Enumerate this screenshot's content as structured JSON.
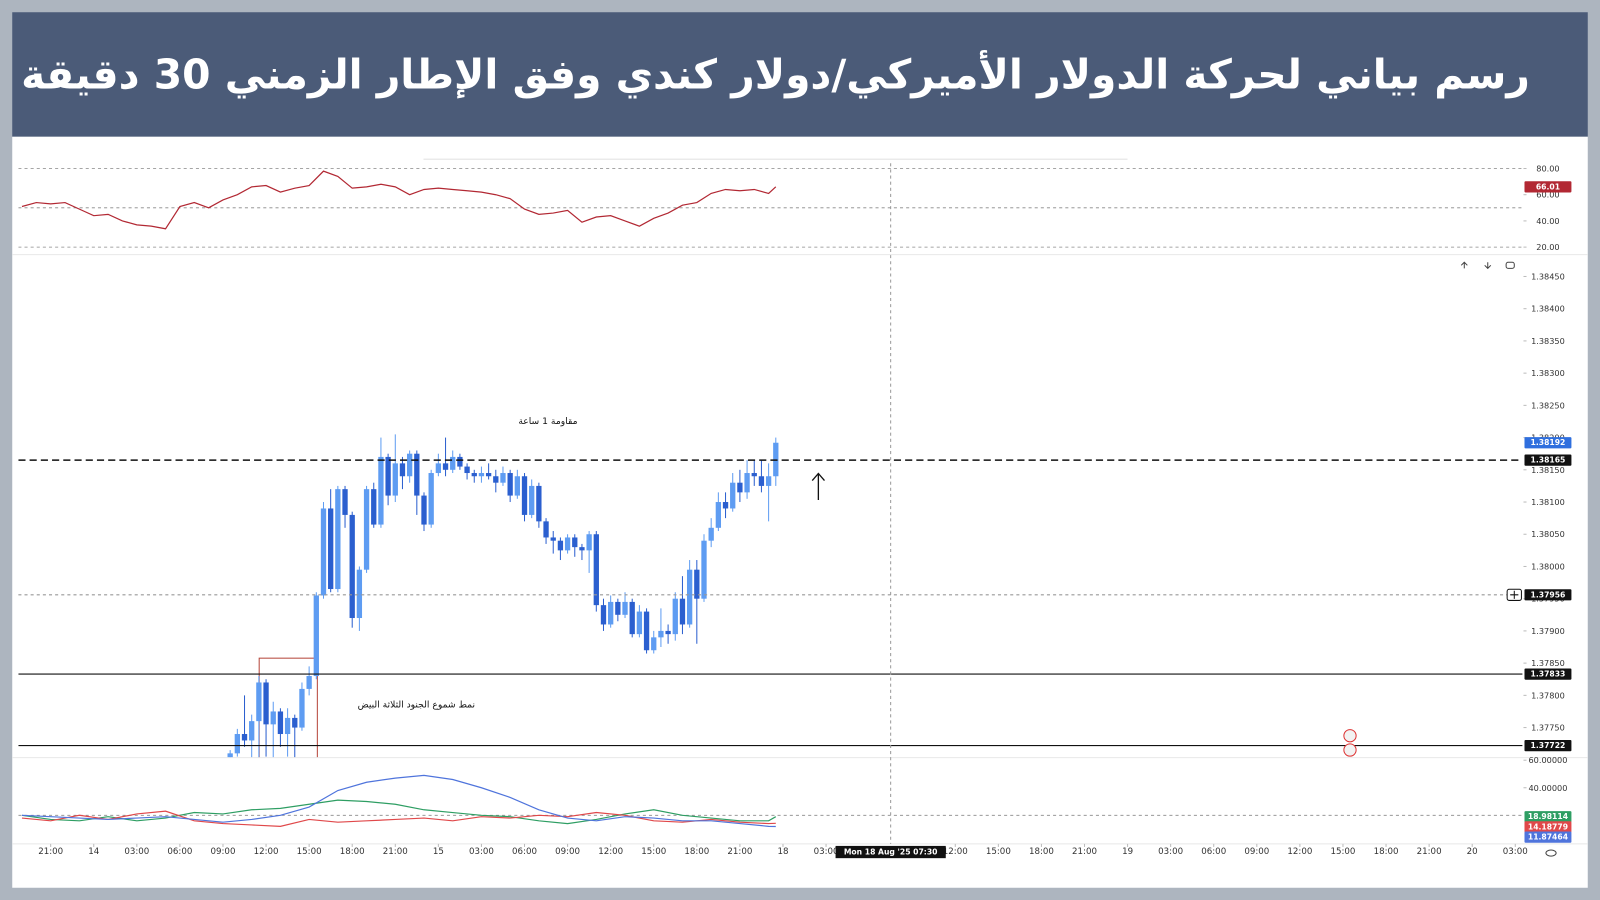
{
  "header": {
    "title": "رسم بياني لحركة الدولار الأميركي/دولار كندي وفق الإطار الزمني 30 دقيقة"
  },
  "chart_data": [
    {
      "type": "line",
      "x": [
        -5,
        -4,
        -3,
        -2,
        -1,
        0,
        1,
        2,
        3,
        4,
        5,
        6,
        7,
        8,
        9,
        10,
        11,
        12,
        13,
        14,
        15,
        16,
        17,
        18,
        19,
        20,
        21,
        22,
        23,
        24,
        25,
        26,
        27,
        28,
        29,
        30,
        31,
        32,
        33,
        34,
        35,
        36,
        37,
        38,
        39,
        40,
        41,
        42,
        43,
        44,
        45,
        46,
        47,
        47.5
      ],
      "series": [
        {
          "color": "#b22833",
          "values": [
            51,
            54,
            53,
            54,
            49,
            44,
            45,
            40,
            37,
            36,
            34,
            51,
            54,
            50,
            56,
            60,
            66,
            67,
            62,
            65,
            67,
            78,
            74,
            65,
            66,
            68,
            66,
            60,
            64,
            65,
            64,
            63,
            62,
            60,
            57,
            49,
            45,
            46,
            48,
            39,
            43,
            44,
            40,
            36,
            42,
            46,
            52,
            54,
            61,
            64,
            63,
            64,
            61,
            66.01
          ]
        }
      ],
      "ylim": [
        15,
        90
      ],
      "yticks": [
        {
          "value": 20,
          "label": "20.00"
        },
        {
          "value": 40,
          "label": "40.00"
        },
        {
          "value": 60,
          "label": "60.00"
        },
        {
          "value": 80,
          "label": "80.00"
        }
      ],
      "bands": [
        80,
        50,
        20
      ]
    },
    {
      "type": "candlestick",
      "x": [
        9.5,
        10,
        10.5,
        11,
        11.5,
        12,
        12.5,
        13,
        13.5,
        14,
        14.5,
        15,
        15.5,
        16,
        16.5,
        17,
        17.5,
        18,
        18.5,
        19,
        19.5,
        20,
        20.5,
        21,
        21.5,
        22,
        22.5,
        23,
        23.5,
        24,
        24.5,
        25,
        25.5,
        26,
        26.5,
        27,
        27.5,
        28,
        28.5,
        29,
        29.5,
        30,
        30.5,
        31,
        31.5,
        32,
        32.5,
        33,
        33.5,
        34,
        34.5,
        35,
        35.5,
        36,
        36.5,
        37,
        37.5,
        38,
        38.5,
        39,
        39.5,
        40,
        40.5,
        41,
        41.5,
        42,
        42.5,
        43,
        43.5,
        44,
        44.5,
        45,
        45.5,
        46,
        46.5,
        47,
        47.5
      ],
      "open": [
        1.377,
        1.3771,
        1.3774,
        1.3773,
        1.3776,
        1.3782,
        1.37755,
        1.37775,
        1.3774,
        1.37765,
        1.3775,
        1.3781,
        1.3783,
        1.37955,
        1.3809,
        1.37965,
        1.3812,
        1.3808,
        1.3792,
        1.37995,
        1.3812,
        1.38065,
        1.3817,
        1.3811,
        1.3816,
        1.3814,
        1.38175,
        1.3811,
        1.38065,
        1.38145,
        1.3816,
        1.3815,
        1.3817,
        1.38155,
        1.38145,
        1.3814,
        1.38145,
        1.3814,
        1.3813,
        1.38145,
        1.3811,
        1.3814,
        1.3808,
        1.38125,
        1.3807,
        1.38045,
        1.3804,
        1.38025,
        1.38045,
        1.3803,
        1.38025,
        1.3805,
        1.3794,
        1.3791,
        1.37945,
        1.37925,
        1.37945,
        1.37895,
        1.3793,
        1.3787,
        1.3789,
        1.379,
        1.37895,
        1.3795,
        1.3791,
        1.37995,
        1.3795,
        1.3804,
        1.3806,
        1.381,
        1.3809,
        1.3813,
        1.38115,
        1.38145,
        1.3814,
        1.38125,
        1.3814
      ],
      "high": [
        1.37715,
        1.37748,
        1.378,
        1.3777,
        1.3783,
        1.37825,
        1.3779,
        1.3778,
        1.3778,
        1.3777,
        1.3782,
        1.37845,
        1.3796,
        1.381,
        1.3812,
        1.38125,
        1.38125,
        1.38085,
        1.38,
        1.38125,
        1.3813,
        1.382,
        1.38175,
        1.38205,
        1.3817,
        1.3818,
        1.3818,
        1.38115,
        1.3815,
        1.38175,
        1.382,
        1.3818,
        1.38175,
        1.3816,
        1.3815,
        1.38155,
        1.3816,
        1.3815,
        1.38155,
        1.3815,
        1.3815,
        1.38145,
        1.38135,
        1.3813,
        1.38075,
        1.38055,
        1.38045,
        1.3805,
        1.3805,
        1.38035,
        1.38055,
        1.38055,
        1.3795,
        1.37955,
        1.3795,
        1.3796,
        1.3795,
        1.3794,
        1.37935,
        1.379,
        1.37935,
        1.3791,
        1.3796,
        1.37985,
        1.3801,
        1.3801,
        1.3805,
        1.38075,
        1.38115,
        1.38115,
        1.38145,
        1.3815,
        1.38165,
        1.38165,
        1.38165,
        1.3816,
        1.382
      ],
      "low": [
        1.37695,
        1.37705,
        1.3772,
        1.377,
        1.377,
        1.37705,
        1.377,
        1.3772,
        1.37705,
        1.377,
        1.37745,
        1.378,
        1.37825,
        1.3795,
        1.3796,
        1.3796,
        1.3806,
        1.37905,
        1.379,
        1.3799,
        1.3806,
        1.3806,
        1.38095,
        1.381,
        1.3812,
        1.3813,
        1.3808,
        1.38055,
        1.3806,
        1.3814,
        1.3814,
        1.38145,
        1.3815,
        1.38135,
        1.3813,
        1.3813,
        1.38135,
        1.38115,
        1.38125,
        1.381,
        1.38105,
        1.3807,
        1.38075,
        1.3806,
        1.38035,
        1.3802,
        1.3801,
        1.3802,
        1.38015,
        1.3801,
        1.3799,
        1.3793,
        1.379,
        1.37905,
        1.37915,
        1.3792,
        1.3789,
        1.3789,
        1.37865,
        1.37865,
        1.37875,
        1.3788,
        1.37885,
        1.37895,
        1.37905,
        1.3788,
        1.37945,
        1.3803,
        1.38055,
        1.38075,
        1.38085,
        1.381,
        1.38105,
        1.38125,
        1.38115,
        1.3807,
        1.38125
      ],
      "close": [
        1.3771,
        1.3774,
        1.3773,
        1.3776,
        1.3782,
        1.37755,
        1.37775,
        1.3774,
        1.37765,
        1.3775,
        1.3781,
        1.3783,
        1.37955,
        1.3809,
        1.37965,
        1.3812,
        1.3808,
        1.3792,
        1.37995,
        1.3812,
        1.38065,
        1.3817,
        1.3811,
        1.3816,
        1.3814,
        1.38175,
        1.3811,
        1.38065,
        1.38145,
        1.3816,
        1.3815,
        1.3817,
        1.38155,
        1.38145,
        1.3814,
        1.38145,
        1.3814,
        1.3813,
        1.38145,
        1.3811,
        1.3814,
        1.3808,
        1.38125,
        1.3807,
        1.38045,
        1.3804,
        1.38025,
        1.38045,
        1.3803,
        1.38025,
        1.3805,
        1.3794,
        1.3791,
        1.37945,
        1.37925,
        1.37945,
        1.37895,
        1.3793,
        1.3787,
        1.3789,
        1.379,
        1.37895,
        1.3795,
        1.3791,
        1.37995,
        1.3795,
        1.3804,
        1.3806,
        1.381,
        1.3809,
        1.3813,
        1.38115,
        1.38145,
        1.3814,
        1.38125,
        1.3814,
        1.38192
      ],
      "up_color": "#5e9cf2",
      "down_color": "#2b5fcf",
      "ylim": [
        1.377,
        1.3848
      ],
      "yticks": [
        {
          "value": 1.3775,
          "label": "1.37750"
        },
        {
          "value": 1.378,
          "label": "1.37800"
        },
        {
          "value": 1.3785,
          "label": "1.37850"
        },
        {
          "value": 1.379,
          "label": "1.37900"
        },
        {
          "value": 1.3795,
          "label": "1.37950"
        },
        {
          "value": 1.38,
          "label": "1.38000"
        },
        {
          "value": 1.3805,
          "label": "1.38050"
        },
        {
          "value": 1.381,
          "label": "1.38100"
        },
        {
          "value": 1.3815,
          "label": "1.38150"
        },
        {
          "value": 1.382,
          "label": "1.38200"
        },
        {
          "value": 1.3825,
          "label": "1.38250"
        },
        {
          "value": 1.383,
          "label": "1.38300"
        },
        {
          "value": 1.3835,
          "label": "1.38350"
        },
        {
          "value": 1.384,
          "label": "1.38400"
        },
        {
          "value": 1.3845,
          "label": "1.38450"
        }
      ],
      "levels": [
        {
          "value": 1.38165,
          "style": "dashed"
        },
        {
          "value": 1.37833,
          "style": "solid"
        },
        {
          "value": 1.37722,
          "style": "solid"
        }
      ],
      "crosshair": {
        "x": 55.5,
        "x_label": "Mon 18 Aug '25  07:30",
        "y": 1.37956
      },
      "annotations": [
        "مقاومة 1 ساعة",
        "نمط شموع الجنود الثلاثة البيض"
      ]
    },
    {
      "type": "line",
      "x": [
        -5,
        -3,
        -1,
        1,
        3,
        5,
        7,
        9,
        11,
        13,
        15,
        17,
        19,
        21,
        23,
        25,
        27,
        29,
        31,
        33,
        35,
        37,
        39,
        41,
        43,
        45,
        47,
        47.5
      ],
      "series": [
        {
          "color": "#2e9e63",
          "values": [
            20,
            17,
            16,
            19,
            16,
            18,
            22,
            21,
            24,
            25,
            28,
            31,
            30,
            28,
            24,
            22,
            20,
            19,
            16,
            14,
            17,
            21,
            24,
            20,
            18,
            16,
            16,
            18.98114
          ]
        },
        {
          "color": "#e0484a",
          "values": [
            18,
            16,
            20,
            17,
            21,
            23,
            16,
            14,
            13,
            12,
            17,
            15,
            16,
            17,
            18,
            16,
            19,
            18,
            20,
            19,
            22,
            20,
            16,
            15,
            17,
            15,
            14,
            14.18779
          ]
        },
        {
          "color": "#4f74dc",
          "values": [
            20,
            19,
            18,
            17,
            18,
            19,
            17,
            15,
            17,
            20,
            26,
            38,
            44,
            47,
            49,
            46,
            40,
            33,
            24,
            18,
            16,
            19,
            18,
            16,
            16,
            14,
            12,
            11.87464
          ]
        }
      ],
      "ylim": [
        0,
        60
      ],
      "yticks": [
        {
          "value": 40,
          "label": "40.00000"
        },
        {
          "value": 60,
          "label": "60.00000"
        }
      ],
      "bands": [
        20
      ],
      "xlim": [
        -5.25,
        99.5
      ],
      "xticks": [
        {
          "value": -3,
          "label": "21:00"
        },
        {
          "value": 0,
          "label": "14"
        },
        {
          "value": 3,
          "label": "03:00"
        },
        {
          "value": 6,
          "label": "06:00"
        },
        {
          "value": 9,
          "label": "09:00"
        },
        {
          "value": 12,
          "label": "12:00"
        },
        {
          "value": 15,
          "label": "15:00"
        },
        {
          "value": 18,
          "label": "18:00"
        },
        {
          "value": 21,
          "label": "21:00"
        },
        {
          "value": 24,
          "label": "15"
        },
        {
          "value": 27,
          "label": "03:00"
        },
        {
          "value": 30,
          "label": "06:00"
        },
        {
          "value": 33,
          "label": "09:00"
        },
        {
          "value": 36,
          "label": "12:00"
        },
        {
          "value": 39,
          "label": "15:00"
        },
        {
          "value": 42,
          "label": "18:00"
        },
        {
          "value": 45,
          "label": "21:00"
        },
        {
          "value": 48,
          "label": "18"
        },
        {
          "value": 51,
          "label": "03:00"
        },
        {
          "value": 60,
          "label": "12:00"
        },
        {
          "value": 63,
          "label": "15:00"
        },
        {
          "value": 66,
          "label": "18:00"
        },
        {
          "value": 69,
          "label": "21:00"
        },
        {
          "value": 72,
          "label": "19"
        },
        {
          "value": 75,
          "label": "03:00"
        },
        {
          "value": 78,
          "label": "06:00"
        },
        {
          "value": 81,
          "label": "09:00"
        },
        {
          "value": 84,
          "label": "12:00"
        },
        {
          "value": 87,
          "label": "15:00"
        },
        {
          "value": 90,
          "label": "18:00"
        },
        {
          "value": 93,
          "label": "21:00"
        },
        {
          "value": 96,
          "label": "20"
        },
        {
          "value": 99,
          "label": "03:00"
        }
      ]
    }
  ]
}
